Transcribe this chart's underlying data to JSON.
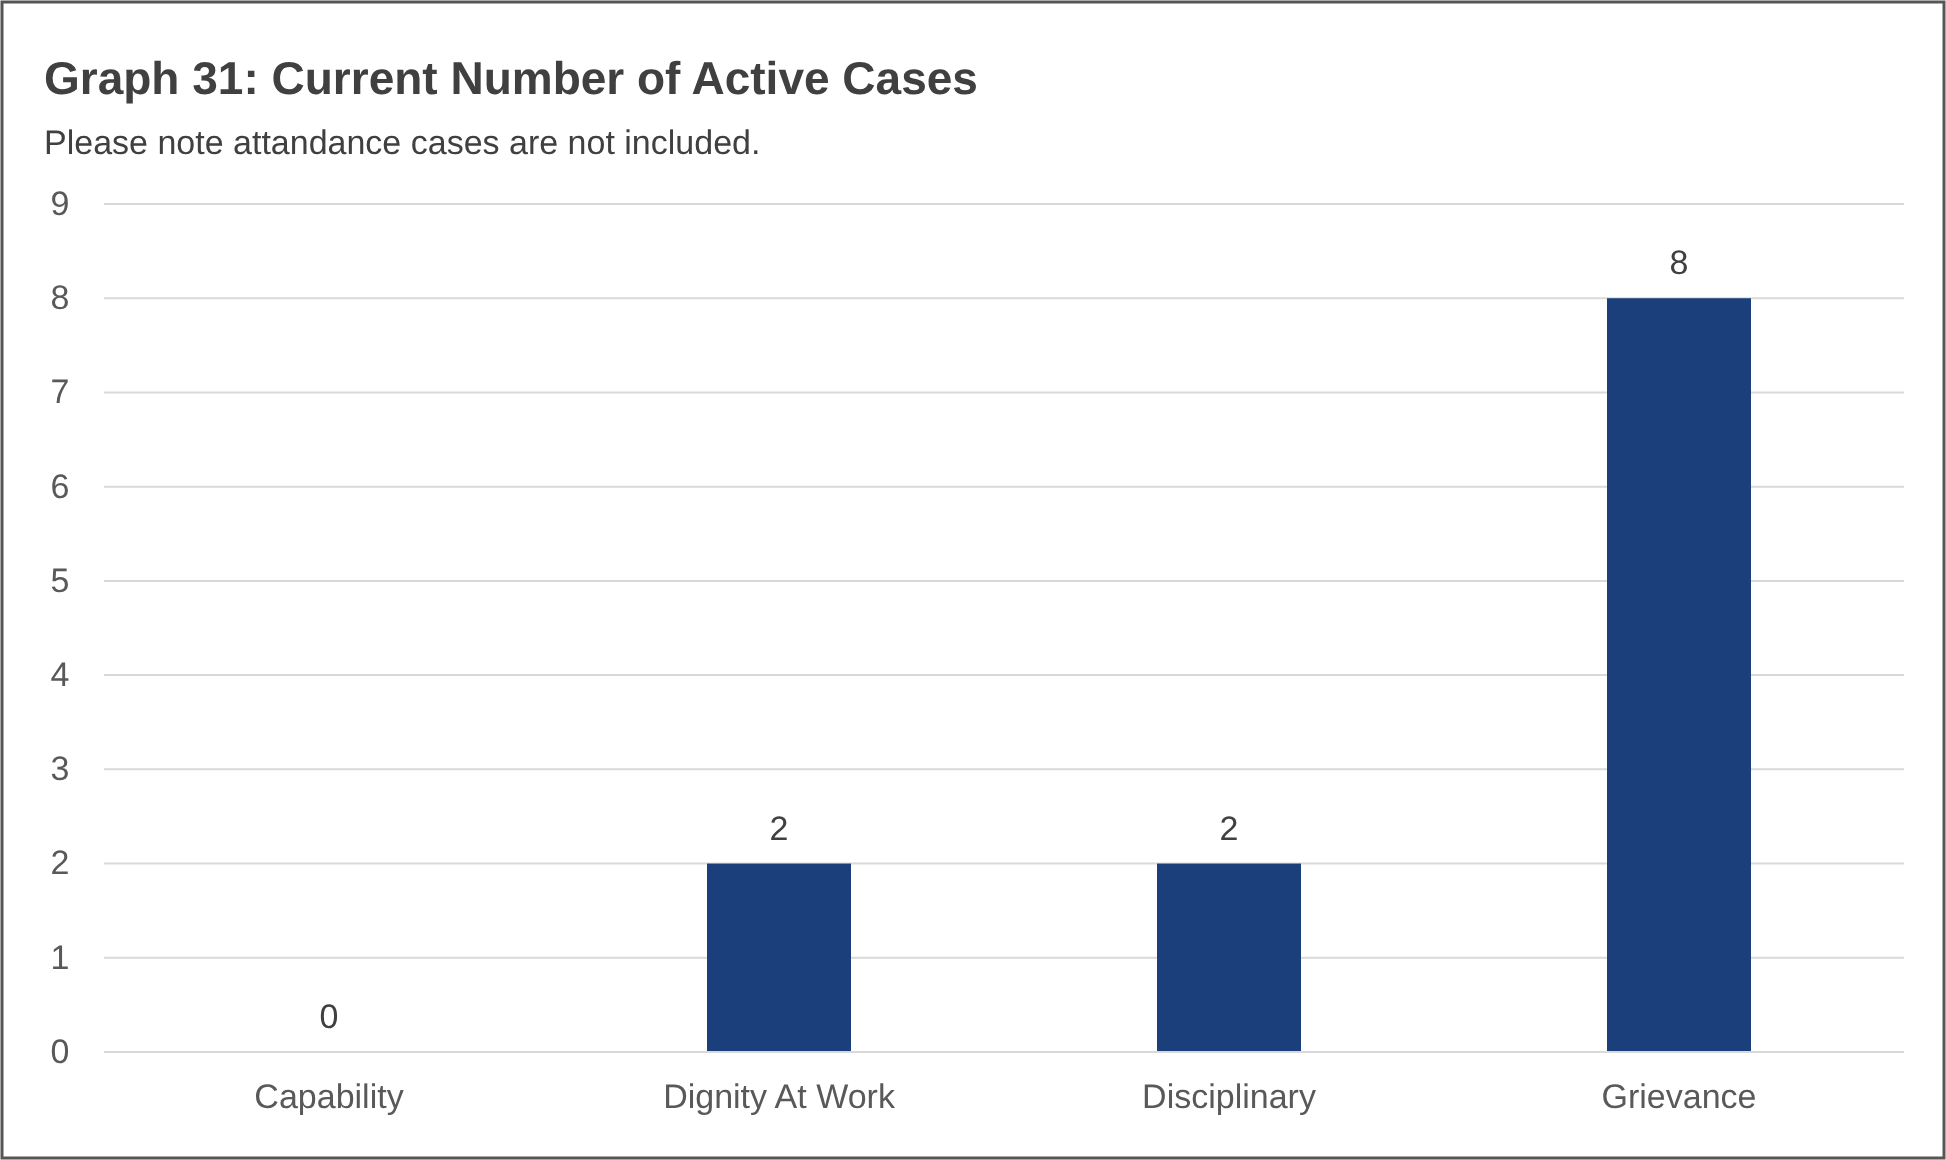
{
  "chart_data": {
    "type": "bar",
    "title": "Graph 31: Current Number of Active Cases",
    "subtitle": "Please note attandance cases are not included.",
    "categories": [
      "Capability",
      "Dignity At Work",
      "Disciplinary",
      "Grievance"
    ],
    "values": [
      0,
      2,
      2,
      8
    ],
    "color": "#1a3f7b",
    "ylim": [
      0,
      9
    ],
    "yticks": [
      0,
      1,
      2,
      3,
      4,
      5,
      6,
      7,
      8,
      9
    ],
    "grid": "y",
    "data_labels": true
  }
}
